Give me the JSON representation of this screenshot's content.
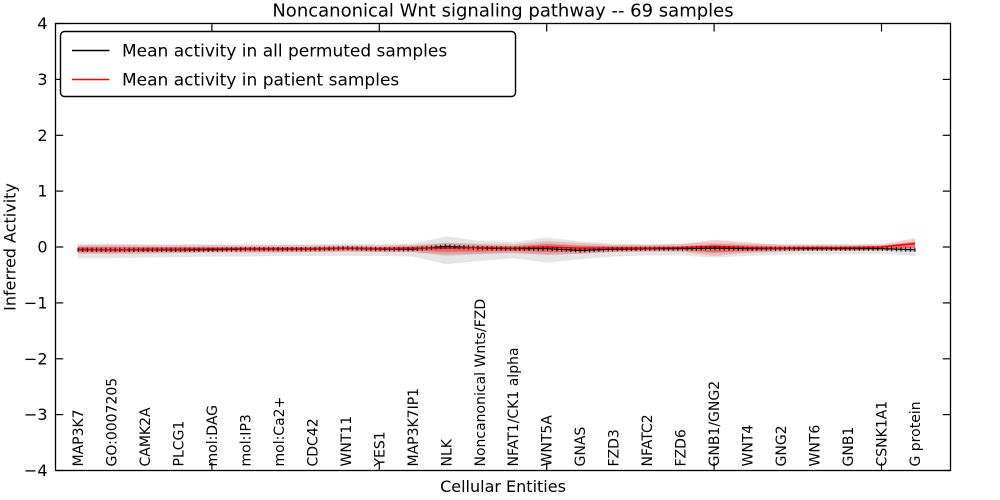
{
  "title": "Noncanonical Wnt signaling pathway -- 69 samples",
  "legend": {
    "items": [
      {
        "label": "Mean activity in all permuted samples",
        "color": "#000000"
      },
      {
        "label": "Mean activity in patient samples",
        "color": "#ff0000"
      }
    ]
  },
  "chart_data": {
    "type": "line",
    "title": "Noncanonical Wnt signaling pathway -- 69 samples",
    "xlabel": "Cellular Entities",
    "ylabel": "Inferred Activity",
    "ylim": [
      -4,
      4
    ],
    "yticks": [
      -4,
      -3,
      -2,
      -1,
      0,
      1,
      2,
      3,
      4
    ],
    "grid": false,
    "legend_position": "upper left",
    "categories": [
      "MAP3K7",
      "GO:0007205",
      "CAMK2A",
      "PLCG1",
      "mol:DAG",
      "mol:IP3",
      "mol:Ca2+",
      "CDC42",
      "WNT11",
      "YES1",
      "MAP3K7IP1",
      "NLK",
      "Noncanonical Wnts/FZD",
      "NFAT1/CK1 alpha",
      "WNT5A",
      "GNAS",
      "FZD3",
      "NFATC2",
      "FZD6",
      "GNB1/GNG2",
      "WNT4",
      "GNG2",
      "WNT6",
      "GNB1",
      "CSNK1A1",
      "G protein"
    ],
    "series": [
      {
        "name": "Mean activity in all permuted samples",
        "color": "#000000",
        "values": [
          -0.05,
          -0.05,
          -0.05,
          -0.05,
          -0.05,
          -0.04,
          -0.04,
          -0.04,
          -0.02,
          -0.04,
          -0.04,
          0.01,
          -0.02,
          -0.03,
          -0.03,
          -0.06,
          -0.04,
          -0.03,
          -0.03,
          -0.02,
          -0.03,
          -0.03,
          -0.03,
          -0.03,
          -0.03,
          -0.05
        ]
      },
      {
        "name": "Mean activity in patient samples",
        "color": "#ff0000",
        "values": [
          -0.04,
          -0.05,
          -0.04,
          -0.04,
          -0.03,
          -0.03,
          -0.03,
          -0.03,
          -0.02,
          -0.03,
          -0.02,
          -0.02,
          -0.01,
          -0.02,
          0.0,
          -0.02,
          -0.02,
          -0.02,
          -0.01,
          0.01,
          -0.01,
          -0.02,
          -0.01,
          -0.01,
          0.0,
          0.06
        ]
      }
    ],
    "bands": [
      {
        "name": "permuted-spread-outer",
        "color": "#888888",
        "opacity": 0.22,
        "upper": [
          0.06,
          0.06,
          0.05,
          0.05,
          0.05,
          0.05,
          0.05,
          0.05,
          0.06,
          0.05,
          0.06,
          0.19,
          0.11,
          0.08,
          0.17,
          0.1,
          0.06,
          0.05,
          0.06,
          0.08,
          0.06,
          0.05,
          0.05,
          0.05,
          0.04,
          0.06
        ],
        "lower": [
          -0.2,
          -0.2,
          -0.19,
          -0.18,
          -0.17,
          -0.17,
          -0.16,
          -0.16,
          -0.16,
          -0.16,
          -0.17,
          -0.31,
          -0.25,
          -0.2,
          -0.28,
          -0.22,
          -0.17,
          -0.15,
          -0.15,
          -0.19,
          -0.16,
          -0.14,
          -0.13,
          -0.13,
          -0.12,
          -0.16
        ]
      },
      {
        "name": "permuted-spread-inner",
        "color": "#888888",
        "opacity": 0.25,
        "upper": [
          0.01,
          0.01,
          0.0,
          0.0,
          0.0,
          0.0,
          0.0,
          0.0,
          0.01,
          0.0,
          0.01,
          0.08,
          0.04,
          0.02,
          0.07,
          0.03,
          0.01,
          0.0,
          0.01,
          0.02,
          0.01,
          0.0,
          0.0,
          0.0,
          0.0,
          0.01
        ],
        "lower": [
          -0.11,
          -0.11,
          -0.1,
          -0.1,
          -0.09,
          -0.09,
          -0.09,
          -0.09,
          -0.08,
          -0.09,
          -0.09,
          -0.16,
          -0.13,
          -0.11,
          -0.14,
          -0.12,
          -0.09,
          -0.08,
          -0.08,
          -0.1,
          -0.09,
          -0.08,
          -0.07,
          -0.07,
          -0.07,
          -0.09
        ]
      },
      {
        "name": "patient-spread-outer",
        "color": "#ff0000",
        "opacity": 0.18,
        "upper": [
          0.03,
          0.04,
          0.03,
          0.03,
          0.03,
          0.03,
          0.03,
          0.03,
          0.03,
          0.03,
          0.04,
          0.07,
          0.06,
          0.05,
          0.11,
          0.07,
          0.04,
          0.04,
          0.05,
          0.13,
          0.08,
          0.04,
          0.04,
          0.04,
          0.05,
          0.16
        ],
        "lower": [
          -0.12,
          -0.13,
          -0.12,
          -0.11,
          -0.1,
          -0.1,
          -0.1,
          -0.09,
          -0.08,
          -0.09,
          -0.09,
          -0.14,
          -0.12,
          -0.1,
          -0.14,
          -0.12,
          -0.09,
          -0.08,
          -0.08,
          -0.16,
          -0.11,
          -0.08,
          -0.07,
          -0.07,
          -0.06,
          -0.03
        ]
      },
      {
        "name": "patient-spread-inner",
        "color": "#ff0000",
        "opacity": 0.35,
        "upper": [
          0.0,
          0.0,
          0.0,
          0.0,
          0.0,
          0.0,
          0.0,
          0.0,
          0.0,
          0.0,
          0.01,
          0.02,
          0.02,
          0.01,
          0.05,
          0.02,
          0.01,
          0.01,
          0.01,
          0.05,
          0.03,
          0.01,
          0.01,
          0.01,
          0.02,
          0.1
        ],
        "lower": [
          -0.08,
          -0.09,
          -0.08,
          -0.08,
          -0.07,
          -0.07,
          -0.07,
          -0.06,
          -0.06,
          -0.06,
          -0.06,
          -0.09,
          -0.08,
          -0.07,
          -0.09,
          -0.08,
          -0.06,
          -0.06,
          -0.05,
          -0.1,
          -0.07,
          -0.05,
          -0.05,
          -0.05,
          -0.04,
          -0.01
        ]
      }
    ]
  }
}
